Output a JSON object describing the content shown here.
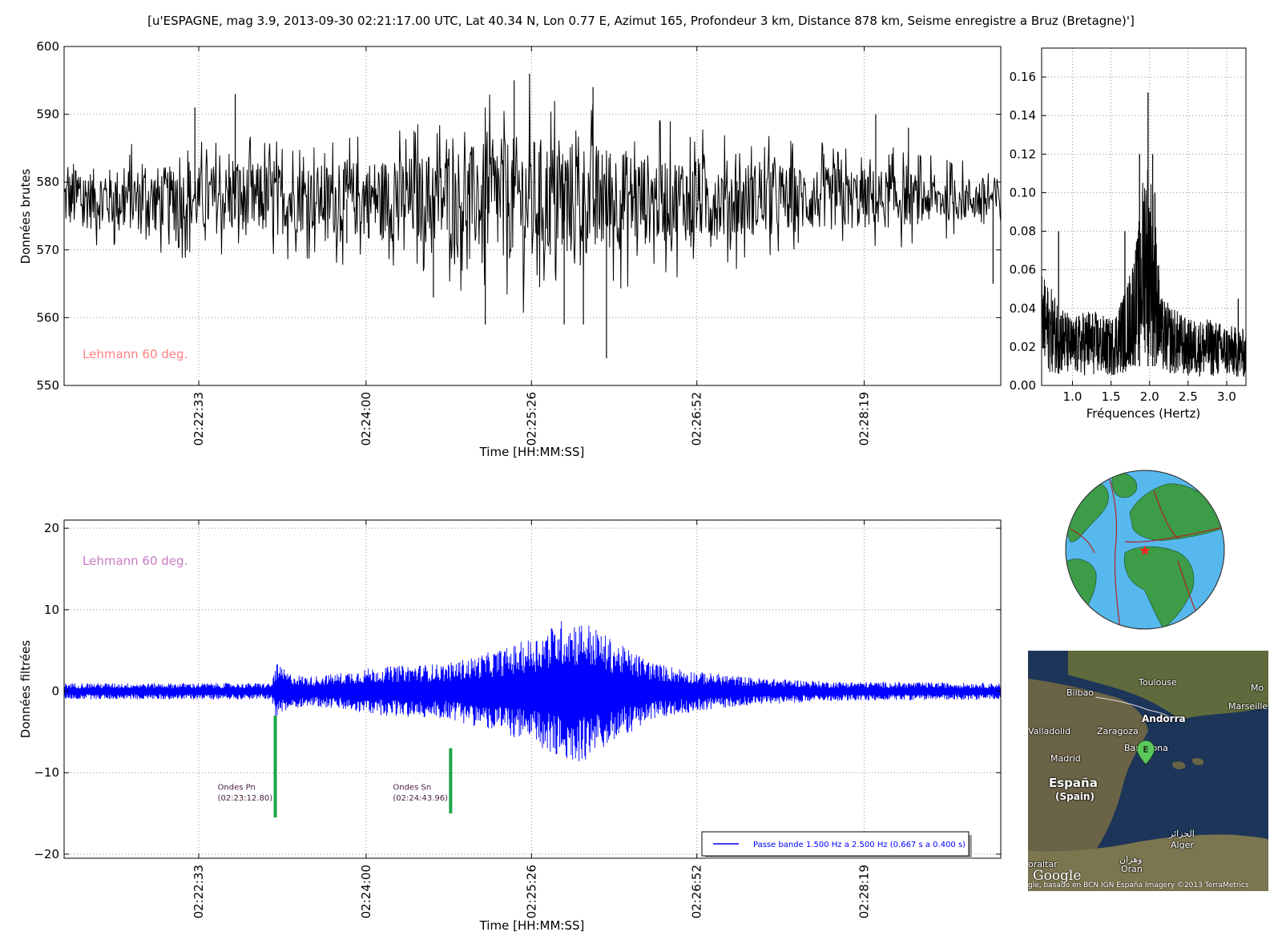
{
  "figure_title": "[u'ESPAGNE, mag 3.9, 2013-09-30 02:21:17.00 UTC, Lat 40.34 N, Lon 0.77 E, Azimut 165, Profondeur 3 km, Distance 878 km, Seisme enregistre a Bruz (Bretagne)']",
  "colors": {
    "raw_trace": "#000000",
    "filtered_trace": "#0000ff",
    "pick_marker": "#1aa64a",
    "phase_text_top": "#ff8080",
    "phase_text_bottom": "#c77bc4",
    "grid": "#8f8f8f"
  },
  "chart_data": [
    {
      "id": "raw",
      "type": "line",
      "ylabel": "Données brutes",
      "xlabel": "Time [HH:MM:SS]",
      "ylim": [
        550,
        600
      ],
      "yticks": [
        550,
        560,
        570,
        580,
        590,
        600
      ],
      "xticks_seconds": [
        93,
        180,
        266,
        352,
        439
      ],
      "xtick_labels": [
        "02:22:33",
        "02:24:00",
        "02:25:26",
        "02:26:52",
        "02:28:19"
      ],
      "xlim_seconds": [
        23,
        510
      ],
      "baseline": 577.5,
      "grid": true,
      "annotation": "Lehmann 60 deg.",
      "envelope": [
        {
          "t": 23,
          "amp": 8
        },
        {
          "t": 90,
          "amp": 9
        },
        {
          "t": 120,
          "amp": 10
        },
        {
          "t": 150,
          "amp": 9
        },
        {
          "t": 185,
          "amp": 11
        },
        {
          "t": 210,
          "amp": 12
        },
        {
          "t": 240,
          "amp": 15
        },
        {
          "t": 260,
          "amp": 17
        },
        {
          "t": 285,
          "amp": 16
        },
        {
          "t": 300,
          "amp": 15
        },
        {
          "t": 330,
          "amp": 12
        },
        {
          "t": 360,
          "amp": 11
        },
        {
          "t": 400,
          "amp": 9
        },
        {
          "t": 450,
          "amp": 8
        },
        {
          "t": 480,
          "amp": 6
        },
        {
          "t": 510,
          "amp": 6
        }
      ],
      "spikes": [
        {
          "t": 91,
          "v": 591
        },
        {
          "t": 112,
          "v": 593
        },
        {
          "t": 170,
          "v": 571
        },
        {
          "t": 215,
          "v": 563
        },
        {
          "t": 242,
          "v": 559
        },
        {
          "t": 257,
          "v": 595
        },
        {
          "t": 265,
          "v": 596
        },
        {
          "t": 283,
          "v": 559
        },
        {
          "t": 293,
          "v": 559
        },
        {
          "t": 298,
          "v": 594
        },
        {
          "t": 305,
          "v": 554
        },
        {
          "t": 445,
          "v": 590
        },
        {
          "t": 462,
          "v": 588
        },
        {
          "t": 506,
          "v": 565
        }
      ]
    },
    {
      "id": "spectrum",
      "type": "line",
      "xlabel": "Fréquences (Hertz)",
      "xlim": [
        0.6,
        3.25
      ],
      "ylim": [
        0,
        0.175
      ],
      "xticks": [
        1.0,
        1.5,
        2.0,
        2.5,
        3.0
      ],
      "xtick_labels": [
        "1.0",
        "1.5",
        "2.0",
        "2.5",
        "3.0"
      ],
      "yticks": [
        0.0,
        0.02,
        0.04,
        0.06,
        0.08,
        0.1,
        0.12,
        0.14,
        0.16
      ],
      "ytick_labels": [
        "0.00",
        "0.02",
        "0.04",
        "0.06",
        "0.08",
        "0.10",
        "0.12",
        "0.14",
        "0.16"
      ],
      "grid": true,
      "envelope": [
        {
          "f": 0.6,
          "amp": 0.05
        },
        {
          "f": 0.8,
          "amp": 0.04
        },
        {
          "f": 1.0,
          "amp": 0.03
        },
        {
          "f": 1.2,
          "amp": 0.035
        },
        {
          "f": 1.5,
          "amp": 0.03
        },
        {
          "f": 1.7,
          "amp": 0.045
        },
        {
          "f": 1.85,
          "amp": 0.07
        },
        {
          "f": 1.95,
          "amp": 0.11
        },
        {
          "f": 2.05,
          "amp": 0.09
        },
        {
          "f": 2.15,
          "amp": 0.04
        },
        {
          "f": 2.5,
          "amp": 0.03
        },
        {
          "f": 2.8,
          "amp": 0.03
        },
        {
          "f": 3.25,
          "amp": 0.025
        }
      ],
      "peaks": [
        {
          "f": 0.82,
          "v": 0.08
        },
        {
          "f": 1.68,
          "v": 0.08
        },
        {
          "f": 1.87,
          "v": 0.12
        },
        {
          "f": 1.98,
          "v": 0.152
        },
        {
          "f": 2.04,
          "v": 0.12
        },
        {
          "f": 2.07,
          "v": 0.1
        },
        {
          "f": 3.15,
          "v": 0.045
        }
      ]
    },
    {
      "id": "filtered",
      "type": "line",
      "ylabel": "Données filtrées",
      "xlabel": "Time [HH:MM:SS]",
      "ylim": [
        -20.5,
        21
      ],
      "yticks": [
        -20,
        -10,
        0,
        10,
        20
      ],
      "ytick_labels": [
        "−20",
        "−10",
        "0",
        "10",
        "20"
      ],
      "xticks_seconds": [
        93,
        180,
        266,
        352,
        439
      ],
      "xtick_labels": [
        "02:22:33",
        "02:24:00",
        "02:25:26",
        "02:26:52",
        "02:28:19"
      ],
      "xlim_seconds": [
        23,
        510
      ],
      "grid": true,
      "annotation": "Lehmann 60 deg.",
      "legend": "Passe bande 1.500 Hz a 2.500 Hz (0.667 s a 0.400 s)",
      "envelope": [
        {
          "t": 23,
          "amp": 1.0
        },
        {
          "t": 131,
          "amp": 1.0
        },
        {
          "t": 133,
          "amp": 3.5
        },
        {
          "t": 140,
          "amp": 2.2
        },
        {
          "t": 150,
          "amp": 1.8
        },
        {
          "t": 165,
          "amp": 2.2
        },
        {
          "t": 180,
          "amp": 2.8
        },
        {
          "t": 200,
          "amp": 3.2
        },
        {
          "t": 222,
          "amp": 3.4
        },
        {
          "t": 235,
          "amp": 4.2
        },
        {
          "t": 255,
          "amp": 5.5
        },
        {
          "t": 270,
          "amp": 7.0
        },
        {
          "t": 283,
          "amp": 9.0
        },
        {
          "t": 295,
          "amp": 8.5
        },
        {
          "t": 310,
          "amp": 6.0
        },
        {
          "t": 330,
          "amp": 3.5
        },
        {
          "t": 350,
          "amp": 2.5
        },
        {
          "t": 380,
          "amp": 1.7
        },
        {
          "t": 420,
          "amp": 1.2
        },
        {
          "t": 510,
          "amp": 1.0
        }
      ],
      "picks": [
        {
          "phase": "Ondes Pn",
          "time": "(02:23:12.80)",
          "t": 132.8,
          "y_top": -3,
          "y_bottom": -15.5
        },
        {
          "phase": "Ondes Sn",
          "time": "(02:24:43.96)",
          "t": 223.96,
          "y_top": -7,
          "y_bottom": -15
        }
      ]
    }
  ],
  "map": {
    "labels": [
      "Bilbao",
      "Toulouse",
      "Mo",
      "Marseille",
      "Andorra",
      "Valladolid",
      "Zaragoza",
      "Barcelona",
      "Madrid",
      "España",
      "(Spain)",
      "الجزائر",
      "Alger",
      "وهران",
      "Oran",
      "oraltar"
    ],
    "marker": "E",
    "logo": "Google",
    "credit": "gle, basado en BCN IGN España  Imagery ©2013 TerraMetrics"
  }
}
